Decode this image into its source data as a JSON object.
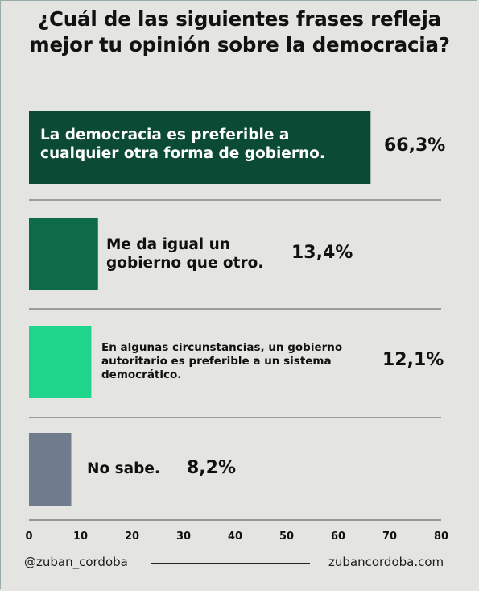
{
  "title": "¿Cuál de las siguientes frases refleja\nmejor tu opinión sobre la democracia?",
  "footer": {
    "handle": "@zuban_cordoba",
    "site": "zubancordoba.com"
  },
  "chart_data": {
    "type": "bar",
    "orientation": "horizontal",
    "title": "¿Cuál de las siguientes frases refleja mejor tu opinión sobre la democracia?",
    "categories": [
      "La democracia es preferible a cualquier otra forma de gobierno.",
      "Me da igual un gobierno que otro.",
      "En algunas circunstancias, un gobierno autoritario es preferible a un sistema democrático.",
      "No sabe."
    ],
    "values": [
      66.3,
      13.4,
      12.1,
      8.2
    ],
    "value_labels": [
      "66,3%",
      "13,4%",
      "12,1%",
      "8,2%"
    ],
    "colors": [
      "#0b4a35",
      "#0d6b4a",
      "#1fd48b",
      "#707c8e"
    ],
    "xlim": [
      0,
      80
    ],
    "xticks": [
      "0",
      "10",
      "20",
      "30",
      "40",
      "50",
      "60",
      "70",
      "80"
    ],
    "grid": false
  }
}
